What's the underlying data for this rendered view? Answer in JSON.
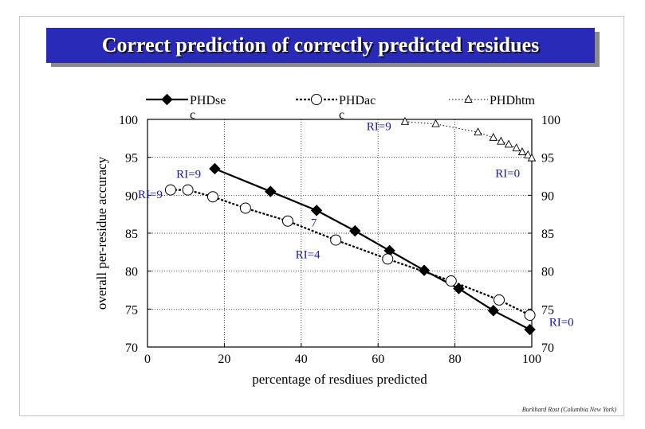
{
  "title": "Correct prediction of correctly predicted residues",
  "footer": "Burkhard Rost (Columbia New York)",
  "chart_data": {
    "type": "line",
    "xlabel": "percentage of resdiues predicted",
    "ylabel": "overall per-residue accuracy",
    "xlim": [
      0,
      100
    ],
    "ylim": [
      70,
      100
    ],
    "x_ticks": [
      "0",
      "20",
      "40",
      "60",
      "80",
      "100"
    ],
    "y_ticks": [
      "70",
      "75",
      "80",
      "85",
      "90",
      "95",
      "100"
    ],
    "grid": "dotted",
    "legend_placement": "top",
    "series": [
      {
        "name": "PHDsec",
        "marker": "diamond",
        "line": "solid",
        "color": "#000000",
        "x": [
          17.5,
          32,
          44,
          54,
          63,
          72,
          81,
          90,
          99.5
        ],
        "y": [
          93.5,
          90.5,
          88,
          85.3,
          82.7,
          80.1,
          77.7,
          74.8,
          72.3
        ]
      },
      {
        "name": "PHDacc",
        "marker": "circle",
        "line": "dashed",
        "color": "#000000",
        "x": [
          6,
          10.5,
          17,
          25.5,
          36.5,
          49,
          62.5,
          79,
          91.5,
          99.5
        ],
        "y": [
          90.7,
          90.7,
          89.8,
          88.3,
          86.6,
          84.1,
          81.6,
          78.7,
          76.2,
          74.2
        ]
      },
      {
        "name": "PHDhtm",
        "marker": "triangle",
        "line": "dotted",
        "color": "#000000",
        "x": [
          67,
          75,
          86,
          90,
          92,
          94,
          96,
          97.5,
          99,
          100
        ],
        "y": [
          99.7,
          99.4,
          98.3,
          97.6,
          97.1,
          96.7,
          96.2,
          95.7,
          95.3,
          94.9
        ]
      }
    ],
    "legend_labels": {
      "phdsec_line1": "PHDse",
      "phdsec_line2": "c",
      "phdacc_line1": "PHDac",
      "phdacc_line2": "c",
      "phdhtm": "PHDhtm"
    },
    "annotations": [
      {
        "text": "RI=9",
        "x": 7.5,
        "y": 92.3,
        "anchor": "start"
      },
      {
        "text": "RI=9",
        "x": -2.5,
        "y": 89.6,
        "anchor": "start"
      },
      {
        "text": "7",
        "x": 42.5,
        "y": 85.9,
        "anchor": "start"
      },
      {
        "text": "RI=4",
        "x": 38.5,
        "y": 81.7,
        "anchor": "start"
      },
      {
        "text": "RI=9",
        "x": 57,
        "y": 98.6,
        "anchor": "start"
      },
      {
        "text": "RI=0",
        "x": 90.5,
        "y": 92.4,
        "anchor": "start"
      },
      {
        "text": "RI=0",
        "x": 104.5,
        "y": 72.8,
        "anchor": "start"
      }
    ],
    "annotation_color": "#1a1aa0"
  }
}
